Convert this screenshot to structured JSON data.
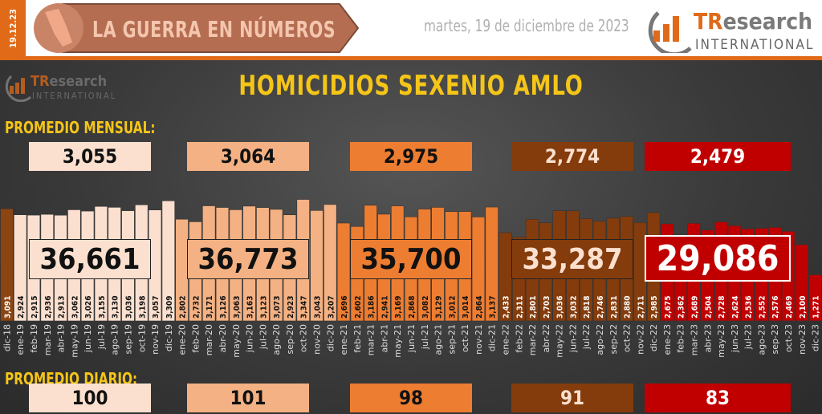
{
  "header": {
    "date_badge": "19.12.23",
    "banner_title": "LA GUERRA EN NÚMEROS",
    "date_text": "martes, 19 de diciembre de 2023",
    "logo": {
      "tr": "TR",
      "rest": "esearch",
      "intl": "INTERNATIONAL"
    }
  },
  "main": {
    "title": "HOMICIDIOS SEXENIO AMLO",
    "monthly_label": "PROMEDIO MENSUAL:",
    "daily_label": "PROMEDIO DIARIO:"
  },
  "groups": [
    {
      "monthly": "3,055",
      "total": "36,661",
      "daily": "100",
      "color": "#fbe0cf",
      "text": "#111"
    },
    {
      "monthly": "3,064",
      "total": "36,773",
      "daily": "101",
      "color": "#f4b183",
      "text": "#111"
    },
    {
      "monthly": "2,975",
      "total": "35,700",
      "daily": "98",
      "color": "#ed7d31",
      "text": "#111"
    },
    {
      "monthly": "2,774",
      "total": "33,287",
      "daily": "91",
      "color": "#843c0c",
      "text": "#fbe0cf"
    },
    {
      "monthly": "2,479",
      "total": "29,086",
      "daily": "83",
      "color": "#c00000",
      "text": "#fff"
    }
  ],
  "chart_data": {
    "type": "bar",
    "title": "HOMICIDIOS SEXENIO AMLO",
    "ylim": [
      0,
      4000
    ],
    "grid": false,
    "categories": [
      "dic-18",
      "ene-19",
      "feb-19",
      "mar-19",
      "abr-19",
      "may-19",
      "jun-19",
      "jul-19",
      "ago-19",
      "sep-19",
      "oct-19",
      "nov-19",
      "dic-19",
      "ene-20",
      "feb-20",
      "mar-20",
      "abr-20",
      "may-20",
      "jun-20",
      "jul-20",
      "ago-20",
      "sep-20",
      "oct-20",
      "nov-20",
      "dic-20",
      "ene-21",
      "feb-21",
      "mar-21",
      "abr-21",
      "may-21",
      "jun-21",
      "jul-21",
      "ago-21",
      "sep-21",
      "oct-21",
      "nov-21",
      "dic-21",
      "ene-22",
      "feb-22",
      "mar-22",
      "abr-22",
      "may-22",
      "jun-22",
      "jul-22",
      "ago-22",
      "sep-22",
      "oct-22",
      "nov-22",
      "dic-22",
      "ene-23",
      "feb-23",
      "mar-23",
      "abr-23",
      "may-23",
      "jun-23",
      "jul-23",
      "ago-23",
      "sep-23",
      "oct-23",
      "nov-23",
      "dic-23"
    ],
    "values": [
      3091,
      2924,
      2915,
      2936,
      2913,
      3062,
      3026,
      3155,
      3130,
      3036,
      3198,
      3057,
      3309,
      2802,
      2732,
      3171,
      3126,
      3063,
      3163,
      3123,
      3073,
      2923,
      3347,
      3043,
      3207,
      2696,
      2602,
      3186,
      2941,
      3169,
      2868,
      3082,
      3129,
      3012,
      3014,
      2864,
      3137,
      2433,
      2311,
      2801,
      2703,
      3036,
      3032,
      2818,
      2746,
      2831,
      2880,
      2711,
      2985,
      2675,
      2362,
      2689,
      2504,
      2728,
      2624,
      2536,
      2552,
      2576,
      2469,
      2100,
      1271
    ],
    "labels": [
      "3,091",
      "2,924",
      "2,915",
      "2,936",
      "2,913",
      "3,062",
      "3,026",
      "3,155",
      "3,130",
      "3,036",
      "3,198",
      "3,057",
      "3,309",
      "2,802",
      "2,732",
      "3,171",
      "3,126",
      "3,063",
      "3,163",
      "3,123",
      "3,073",
      "2,923",
      "3,347",
      "3,043",
      "3,207",
      "2,696",
      "2,602",
      "3,186",
      "2,941",
      "3,169",
      "2,868",
      "3,082",
      "3,129",
      "3,012",
      "3,014",
      "2,864",
      "3,137",
      "2,433",
      "2,311",
      "2,801",
      "2,703",
      "3,036",
      "3,032",
      "2,818",
      "2,746",
      "2,831",
      "2,880",
      "2,711",
      "2,985",
      "2,675",
      "2,362",
      "2,689",
      "2,504",
      "2,728",
      "2,624",
      "2,536",
      "2,552",
      "2,576",
      "2,469",
      "2,100",
      "1,271"
    ],
    "colors": {
      "dic-18": "#8b4513",
      "2019": "#fbe0cf",
      "2020": "#f4b183",
      "2021": "#ed7d31",
      "2022": "#843c0c",
      "2023": "#c00000"
    }
  }
}
